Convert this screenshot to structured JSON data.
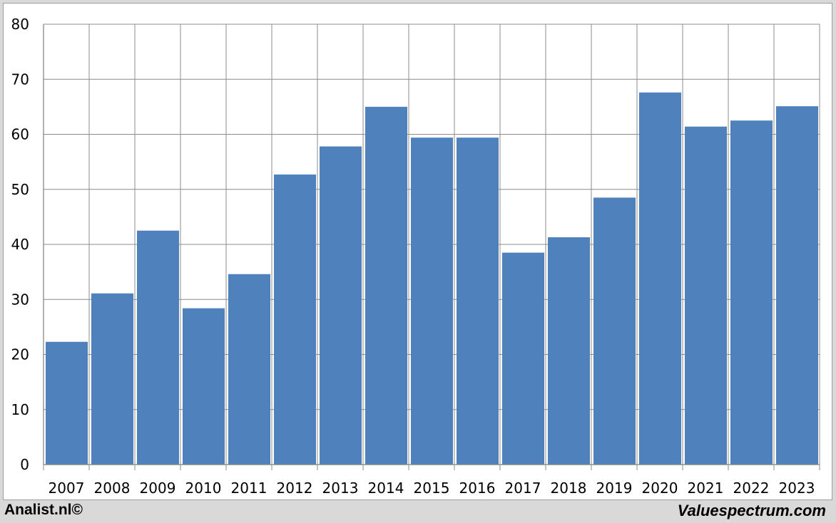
{
  "chart_data": {
    "type": "bar",
    "title": "",
    "xlabel": "",
    "ylabel": "",
    "categories": [
      "2007",
      "2008",
      "2009",
      "2010",
      "2011",
      "2012",
      "2013",
      "2014",
      "2015",
      "2016",
      "2017",
      "2018",
      "2019",
      "2020",
      "2021",
      "2022",
      "2023"
    ],
    "values": [
      22.3,
      31.1,
      42.5,
      28.4,
      34.6,
      52.7,
      57.8,
      65.0,
      59.4,
      59.4,
      38.5,
      41.3,
      48.5,
      67.6,
      61.4,
      62.5,
      65.1
    ],
    "ylim": [
      0,
      80
    ],
    "yticks": [
      0,
      10,
      20,
      30,
      40,
      50,
      60,
      70,
      80
    ],
    "grid": true,
    "legend": "none",
    "bar_color": "#4f81bd",
    "grid_color": "#8c8c8c"
  },
  "footer": {
    "left_text": "Analist.nl©",
    "right_text": "Valuespectrum.com"
  }
}
